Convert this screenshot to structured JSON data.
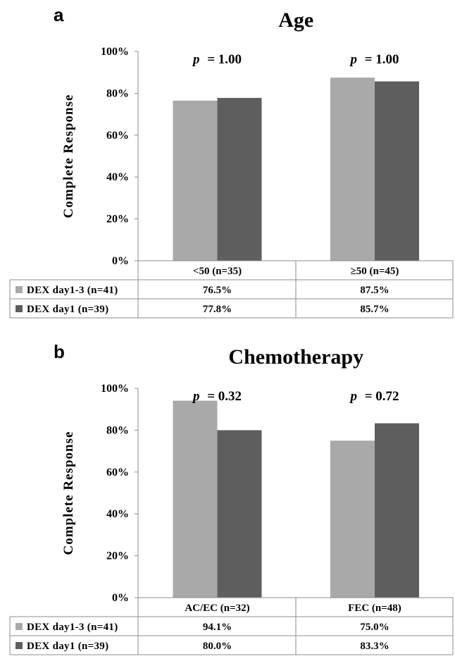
{
  "series_colors": [
    "#a9a9a9",
    "#5e5e5e"
  ],
  "chart_data": [
    {
      "type": "bar",
      "panel_label": "a",
      "title": "Age",
      "ylabel": "Complete Response",
      "ylim": [
        0,
        100
      ],
      "yticks": [
        "0%",
        "20%",
        "40%",
        "60%",
        "80%",
        "100%"
      ],
      "categories": [
        "<50 (n=35)",
        "≥50 (n=45)"
      ],
      "series": [
        {
          "name": "DEX day1-3 (n=41)",
          "values": [
            76.5,
            87.5
          ],
          "labels": [
            "76.5%",
            "87.5%"
          ]
        },
        {
          "name": "DEX day1 (n=39)",
          "values": [
            77.8,
            85.7
          ],
          "labels": [
            "77.8%",
            "85.7%"
          ]
        }
      ],
      "p_prefix": "p",
      "p_values": [
        "= 1.00",
        "= 1.00"
      ],
      "legend": "data table below chart"
    },
    {
      "type": "bar",
      "panel_label": "b",
      "title": "Chemotherapy",
      "ylabel": "Complete Response",
      "ylim": [
        0,
        100
      ],
      "yticks": [
        "0%",
        "20%",
        "40%",
        "60%",
        "80%",
        "100%"
      ],
      "categories": [
        "AC/EC (n=32)",
        "FEC (n=48)"
      ],
      "series": [
        {
          "name": "DEX day1-3 (n=41)",
          "values": [
            94.1,
            75.0
          ],
          "labels": [
            "94.1%",
            "75.0%"
          ]
        },
        {
          "name": "DEX day1 (n=39)",
          "values": [
            80.0,
            83.3
          ],
          "labels": [
            "80.0%",
            "83.3%"
          ]
        }
      ],
      "p_prefix": "p",
      "p_values": [
        "= 0.32",
        "= 0.72"
      ],
      "legend": "data table below chart"
    }
  ]
}
